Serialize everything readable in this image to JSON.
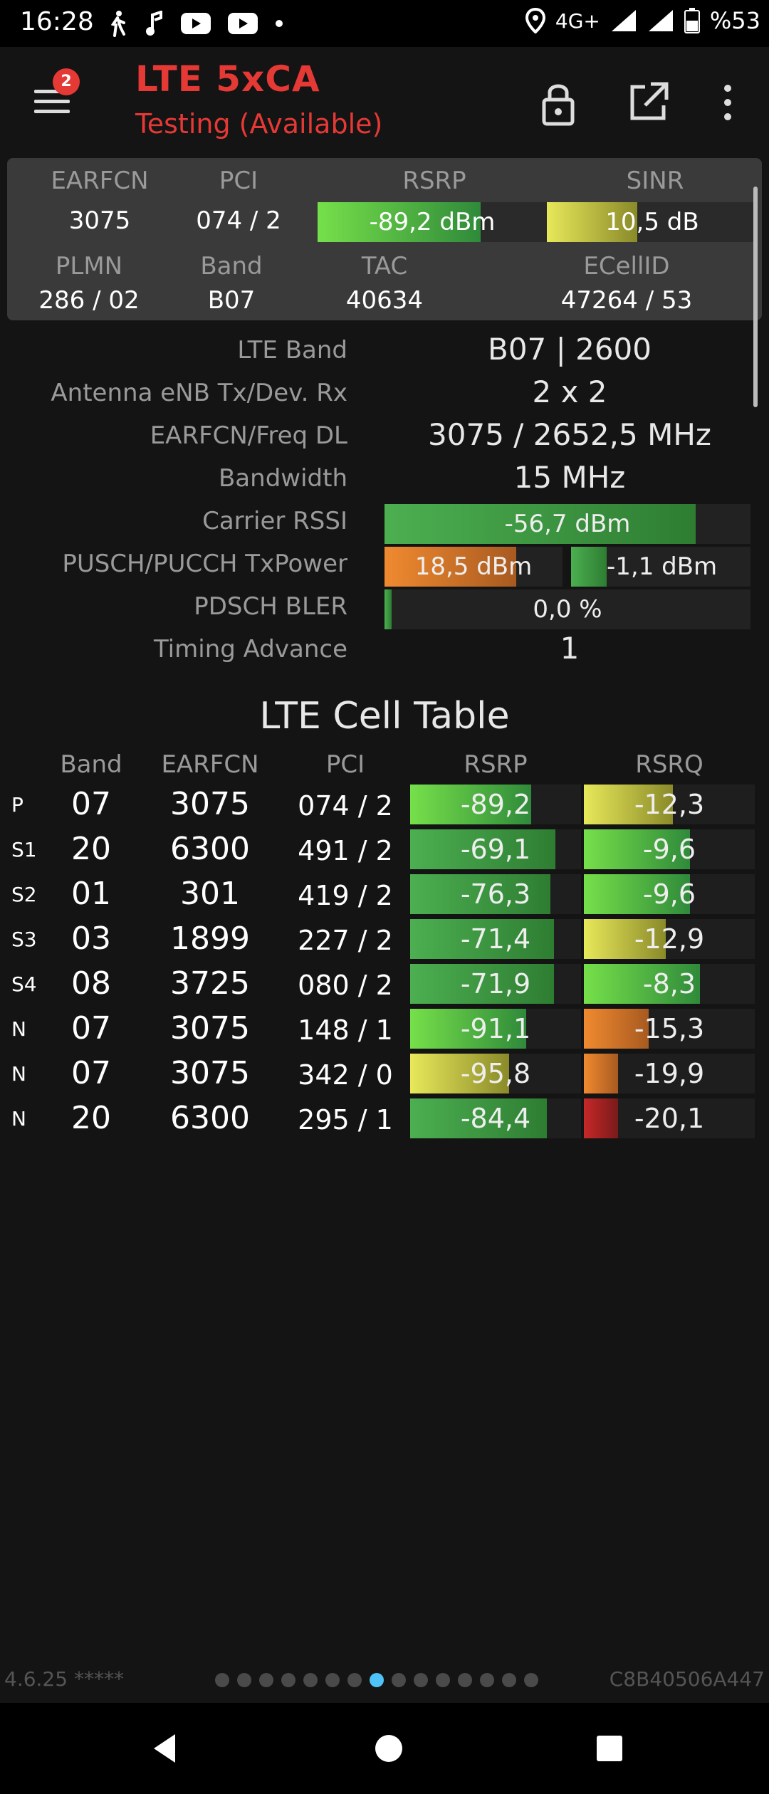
{
  "status_bar": {
    "time": "16:28",
    "network": "4G+",
    "battery": "%53",
    "icons": [
      "walking-icon",
      "music-note-icon",
      "youtube-icon",
      "youtube-icon",
      "dot-icon",
      "location-icon",
      "signal-icon",
      "signal-icon",
      "battery-icon"
    ]
  },
  "app_bar": {
    "notification_count": "2",
    "title": "LTE 5xCA",
    "subtitle": "Testing (Available)",
    "actions": [
      "lock-icon",
      "open-external-icon",
      "more-vert-icon"
    ]
  },
  "summary": {
    "headers": {
      "earfcn": "EARFCN",
      "pci": "PCI",
      "rsrp": "RSRP",
      "sinr": "SINR",
      "plmn": "PLMN",
      "band": "Band",
      "tac": "TAC",
      "ecellid": "ECellID"
    },
    "earfcn": "3075",
    "pci": "074 / 2",
    "rsrp": {
      "text": "-89,2 dBm",
      "level": 0.71,
      "color": "green"
    },
    "sinr": {
      "text": "10,5 dB",
      "level": 0.43,
      "color": "yellow"
    },
    "plmn": "286 / 02",
    "band": "B07",
    "tac": "40634",
    "ecellid": "47264 / 53"
  },
  "details": {
    "lte_band_label": "LTE Band",
    "lte_band_value": "B07 | 2600",
    "antenna_label": "Antenna eNB Tx/Dev. Rx",
    "antenna_value": "2 x 2",
    "earfcn_freq_label": "EARFCN/Freq DL",
    "earfcn_freq_value": "3075 / 2652,5 MHz",
    "bandwidth_label": "Bandwidth",
    "bandwidth_value": "15 MHz",
    "rssi_label": "Carrier RSSI",
    "rssi": {
      "text": "-56,7 dBm",
      "level": 0.85
    },
    "txpower_label": "PUSCH/PUCCH TxPower",
    "pusch": {
      "text": "18,5 dBm",
      "level": 0.74
    },
    "pucch": {
      "text": "-1,1 dBm",
      "level": 0.2
    },
    "bler_label": "PDSCH BLER",
    "bler": {
      "text": "0,0 %",
      "level": 0.02
    },
    "timing_label": "Timing Advance",
    "timing_value": "1"
  },
  "cell_table": {
    "title": "LTE Cell Table",
    "headers": {
      "band": "Band",
      "earfcn": "EARFCN",
      "pci": "PCI",
      "rsrp": "RSRP",
      "rsrq": "RSRQ"
    },
    "rows": [
      {
        "type": "P",
        "band": "07",
        "earfcn": "3075",
        "pci": "074 / 2",
        "rsrp": "-89,2",
        "rsrp_level": 0.71,
        "rsrp_color": "green",
        "rsrq": "-12,3",
        "rsrq_level": 0.52,
        "rsrq_color": "yellow"
      },
      {
        "type": "S1",
        "band": "20",
        "earfcn": "6300",
        "pci": "491 / 2",
        "rsrp": "-69,1",
        "rsrp_level": 0.85,
        "rsrp_color": "green-dark",
        "rsrq": "-9,6",
        "rsrq_level": 0.62,
        "rsrq_color": "green"
      },
      {
        "type": "S2",
        "band": "01",
        "earfcn": "301",
        "pci": "419 / 2",
        "rsrp": "-76,3",
        "rsrp_level": 0.82,
        "rsrp_color": "green-dark",
        "rsrq": "-9,6",
        "rsrq_level": 0.62,
        "rsrq_color": "green"
      },
      {
        "type": "S3",
        "band": "03",
        "earfcn": "1899",
        "pci": "227 / 2",
        "rsrp": "-71,4",
        "rsrp_level": 0.84,
        "rsrp_color": "green-dark",
        "rsrq": "-12,9",
        "rsrq_level": 0.48,
        "rsrq_color": "yellow"
      },
      {
        "type": "S4",
        "band": "08",
        "earfcn": "3725",
        "pci": "080 / 2",
        "rsrp": "-71,9",
        "rsrp_level": 0.84,
        "rsrp_color": "green-dark",
        "rsrq": "-8,3",
        "rsrq_level": 0.68,
        "rsrq_color": "green"
      },
      {
        "type": "N",
        "band": "07",
        "earfcn": "3075",
        "pci": "148 / 1",
        "rsrp": "-91,1",
        "rsrp_level": 0.68,
        "rsrp_color": "green",
        "rsrq": "-15,3",
        "rsrq_level": 0.38,
        "rsrq_color": "orange"
      },
      {
        "type": "N",
        "band": "07",
        "earfcn": "3075",
        "pci": "342 / 0",
        "rsrp": "-95,8",
        "rsrp_level": 0.58,
        "rsrp_color": "yellow",
        "rsrq": "-19,9",
        "rsrq_level": 0.2,
        "rsrq_color": "orange"
      },
      {
        "type": "N",
        "band": "20",
        "earfcn": "6300",
        "pci": "295 / 1",
        "rsrp": "-84,4",
        "rsrp_level": 0.8,
        "rsrp_color": "green-dark",
        "rsrq": "-20,1",
        "rsrq_level": 0.2,
        "rsrq_color": "red"
      }
    ]
  },
  "footer": {
    "version": "4.6.25 *****",
    "device_id": "C8B40506A447",
    "page_count": 15,
    "active_page": 7
  },
  "nav_bar": [
    "back-icon",
    "home-icon",
    "recents-icon"
  ]
}
